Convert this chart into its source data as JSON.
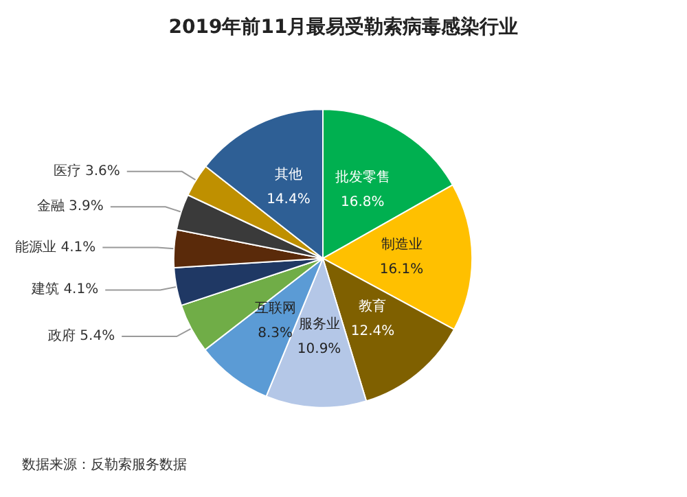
{
  "chart_data": {
    "type": "pie",
    "title": "2019年前11月最易受勒索病毒感染行业",
    "categories": [
      "批发零售",
      "制造业",
      "教育",
      "服务业",
      "互联网",
      "政府",
      "建筑",
      "能源业",
      "金融",
      "医疗",
      "其他"
    ],
    "values": [
      16.8,
      16.1,
      12.4,
      10.9,
      8.3,
      5.4,
      4.1,
      4.1,
      3.9,
      3.6,
      14.4
    ],
    "value_labels": [
      "16.8%",
      "16.1%",
      "12.4%",
      "10.9%",
      "8.3%",
      "5.4%",
      "4.1%",
      "4.1%",
      "3.9%",
      "3.6%",
      "14.4%"
    ],
    "colors": [
      "#00b050",
      "#ffc000",
      "#7f6000",
      "#b4c7e7",
      "#5b9bd5",
      "#70ad47",
      "#1f3864",
      "#5a2a0a",
      "#3a3a3a",
      "#bf9000",
      "#2e5f95"
    ],
    "annotations": [
      "数据来源：反勒索服务数据"
    ],
    "legend": false
  }
}
